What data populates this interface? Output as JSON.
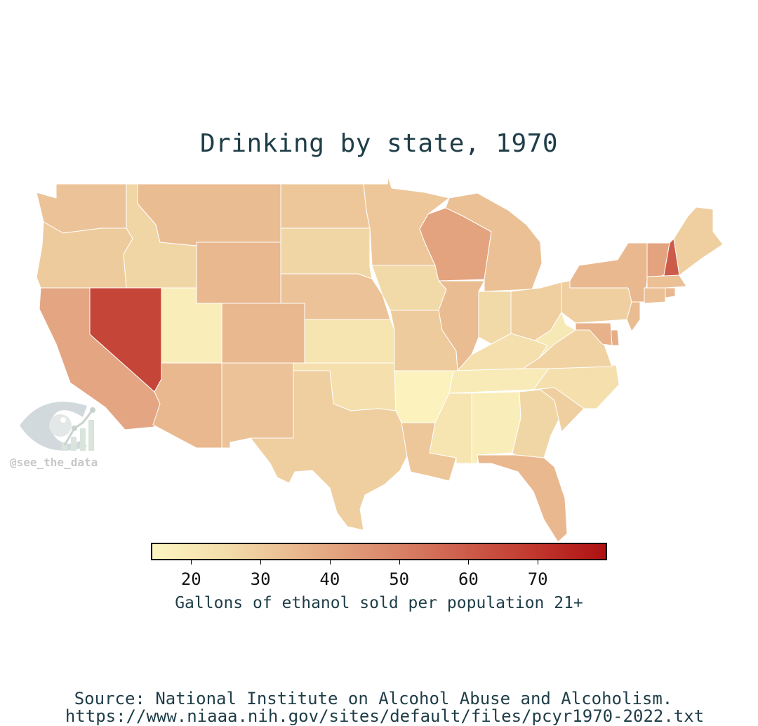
{
  "title": "Drinking by state, 1970",
  "colorbar": {
    "label": "Gallons of ethanol sold per population 21+",
    "min": 14.4,
    "max": 79.8,
    "ticks": [
      "20",
      "30",
      "40",
      "50",
      "60",
      "70"
    ],
    "colors": [
      "#fcf6c2",
      "#f3dcaa",
      "#e8b48c",
      "#dc8d6f",
      "#cf6250",
      "#c23a30",
      "#ae1112"
    ]
  },
  "source": {
    "line1": "Source: National Institute on Alcohol Abuse and Alcoholism.",
    "line2": "https://www.niaaa.nih.gov/sites/default/files/pcyr1970-2022.txt"
  },
  "watermark": "@see_the_data",
  "chart_data": {
    "type": "choropleth",
    "title": "Drinking by state, 1970",
    "legend_label": "Gallons of ethanol sold per population 21+",
    "range": [
      14.4,
      79.8
    ],
    "values": {
      "WA": 32,
      "OR": 30,
      "CA": 40,
      "NV": 66,
      "ID": 27,
      "MT": 34,
      "WY": 35,
      "UT": 18,
      "AZ": 35,
      "CO": 35,
      "NM": 32,
      "ND": 31,
      "SD": 27,
      "NE": 32,
      "KS": 22,
      "OK": 24,
      "TX": 29,
      "MN": 31,
      "IA": 26,
      "MO": 30,
      "AR": 16,
      "LA": 31,
      "WI": 41,
      "IL": 34,
      "MI": 33,
      "IN": 26,
      "OH": 29,
      "KY": 24,
      "TN": 19,
      "MS": 22,
      "AL": 18,
      "GA": 27,
      "FL": 35,
      "SC": 29,
      "NC": 24,
      "VA": 28,
      "WV": 20,
      "PA": 29,
      "NY": 35,
      "VT": 41,
      "NH": 60,
      "ME": 29,
      "MA": 33,
      "CT": 33,
      "RI": 35,
      "NJ": 34,
      "DE": 38,
      "MD": 37
    }
  }
}
